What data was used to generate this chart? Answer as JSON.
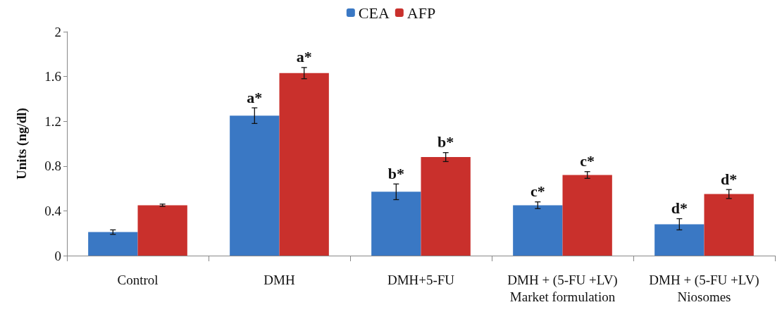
{
  "chart_data": {
    "type": "bar",
    "ylabel": "Units (ng/dl)",
    "categories": [
      "Control",
      "DMH",
      "DMH+5-FU",
      "DMH + (5-FU +LV)\nMarket formulation",
      "DMH + (5-FU +LV)\nNiosomes"
    ],
    "series": [
      {
        "name": "CEA",
        "color": "#3a78c4",
        "values": [
          0.21,
          1.25,
          0.57,
          0.45,
          0.28
        ],
        "errors": [
          0.02,
          0.07,
          0.07,
          0.03,
          0.05
        ]
      },
      {
        "name": "AFP",
        "color": "#c9302c",
        "values": [
          0.45,
          1.63,
          0.88,
          0.72,
          0.55
        ],
        "errors": [
          0.01,
          0.05,
          0.04,
          0.03,
          0.04
        ]
      }
    ],
    "ylim": [
      0,
      2
    ],
    "yticks": [
      0,
      0.4,
      0.8,
      1.2,
      1.6,
      2
    ],
    "grid": false,
    "legend": "top",
    "annotations": [
      {
        "text": "a*",
        "x": "DMH",
        "y": 1.25
      },
      {
        "text": "a*",
        "x": "DMH",
        "y": 1.63
      },
      {
        "text": "b*",
        "x": "DMH+5-FU",
        "y": 0.57
      },
      {
        "text": "b*",
        "x": "DMH+5-FU",
        "y": 0.88
      },
      {
        "text": "c*",
        "x": "DMH + (5-FU +LV)\nMarket formulation",
        "y": 0.45
      },
      {
        "text": "c*",
        "x": "DMH + (5-FU +LV)\nMarket formulation",
        "y": 0.72
      },
      {
        "text": "d*",
        "x": "DMH + (5-FU +LV)\nNiosomes",
        "y": 0.28
      },
      {
        "text": "d*",
        "x": "DMH + (5-FU +LV)\nNiosomes",
        "y": 0.55
      }
    ]
  }
}
